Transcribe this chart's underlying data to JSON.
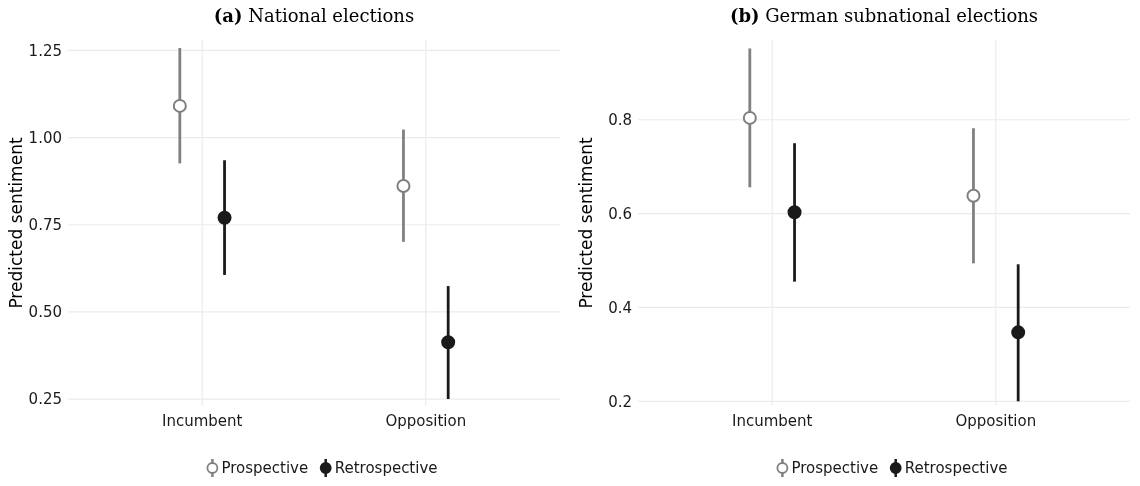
{
  "chart_data": [
    {
      "type": "scatter",
      "title": "(a) National elections",
      "ylabel": "Predicted sentiment",
      "categories": [
        "Incumbent",
        "Opposition"
      ],
      "ylim": [
        0.23,
        1.28
      ],
      "yticks": [
        {
          "value": 0.25,
          "label": "0.25"
        },
        {
          "value": 0.5,
          "label": "0.50"
        },
        {
          "value": 0.75,
          "label": "0.75"
        },
        {
          "value": 1,
          "label": "1.00"
        },
        {
          "value": 1.25,
          "label": "1.25"
        }
      ],
      "grid": true,
      "legend": "bottom",
      "marker": "circle",
      "series": [
        {
          "name": "Prospective",
          "color": "#808080",
          "values": [
            1.091,
            0.861
          ],
          "errors": [
            [
              0.926,
              1.257
            ],
            [
              0.701,
              1.023
            ]
          ]
        },
        {
          "name": "Retrospective",
          "color": "#1a1a1a",
          "values": [
            0.77,
            0.413
          ],
          "errors": [
            [
              0.606,
              0.935
            ],
            [
              0.25,
              0.574
            ]
          ]
        }
      ]
    },
    {
      "type": "scatter",
      "title": "(b) German subnational elections",
      "ylabel": "Predicted sentiment",
      "categories": [
        "Incumbent",
        "Opposition"
      ],
      "ylim": [
        0.19,
        0.97
      ],
      "yticks": [
        0.2,
        0.4,
        0.6,
        0.8
      ],
      "grid": true,
      "legend": "bottom",
      "marker": "circle",
      "series": [
        {
          "name": "Prospective",
          "color": "#808080",
          "values": [
            0.804,
            0.638
          ],
          "errors": [
            [
              0.656,
              0.952
            ],
            [
              0.494,
              0.782
            ]
          ]
        },
        {
          "name": "Retrospective",
          "color": "#1a1a1a",
          "values": [
            0.603,
            0.347
          ],
          "errors": [
            [
              0.455,
              0.75
            ],
            [
              0.2,
              0.492
            ]
          ]
        }
      ]
    }
  ]
}
